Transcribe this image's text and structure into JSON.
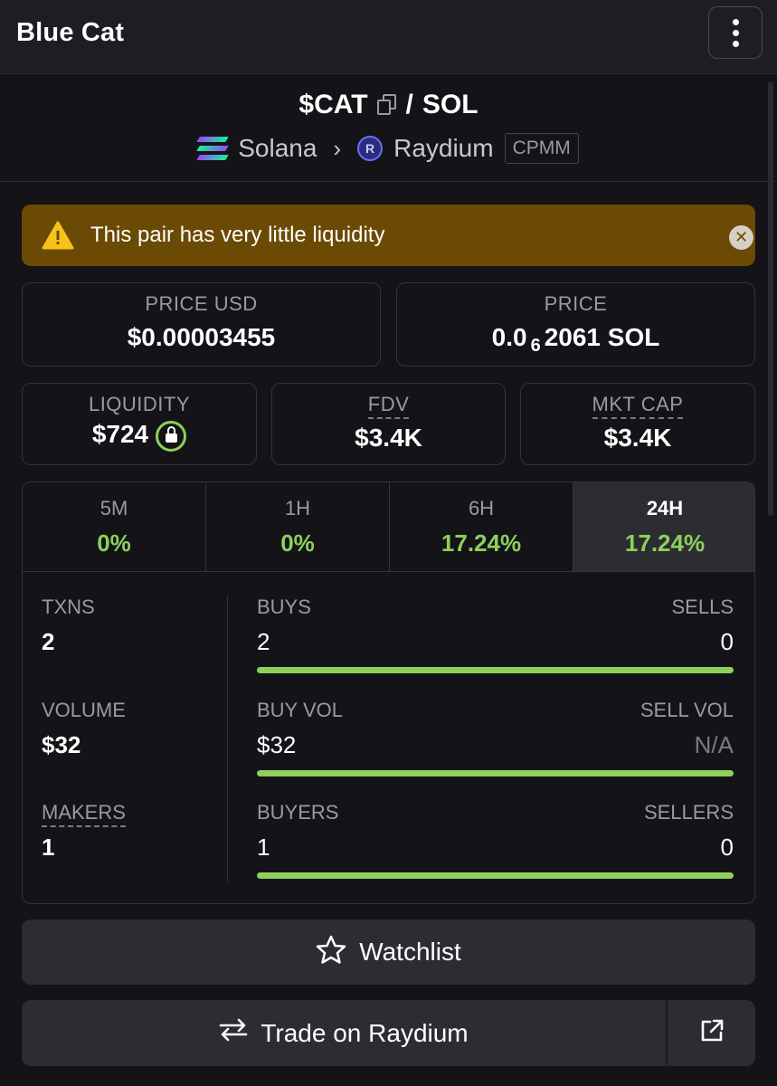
{
  "app": {
    "title": "Blue Cat"
  },
  "pair": {
    "base": "$CAT",
    "separator": "/",
    "quote": "SOL",
    "chain": "Solana",
    "dex": "Raydium",
    "dex_badge_letter": "R",
    "pool_type": "CPMM"
  },
  "alert": {
    "text": "This pair has very little liquidity",
    "color": "#6b4a05"
  },
  "price_usd": {
    "label": "PRICE USD",
    "value": "$0.00003455"
  },
  "price_native": {
    "label": "PRICE",
    "prefix": "0.0",
    "subscript": "6",
    "suffix": "2061 SOL"
  },
  "liquidity": {
    "label": "LIQUIDITY",
    "value": "$724"
  },
  "fdv": {
    "label": "FDV",
    "value": "$3.4K"
  },
  "mkt_cap": {
    "label": "MKT CAP",
    "value": "$3.4K"
  },
  "tabs": [
    {
      "label": "5M",
      "value": "0%"
    },
    {
      "label": "1H",
      "value": "0%"
    },
    {
      "label": "6H",
      "value": "17.24%"
    },
    {
      "label": "24H",
      "value": "17.24%",
      "active": true
    }
  ],
  "stats": {
    "txns": {
      "label": "TXNS",
      "value": "2"
    },
    "volume": {
      "label": "VOLUME",
      "value": "$32"
    },
    "makers": {
      "label": "MAKERS",
      "value": "1"
    },
    "buys": {
      "label": "BUYS",
      "value": "2"
    },
    "sells": {
      "label": "SELLS",
      "value": "0"
    },
    "buy_vol": {
      "label": "BUY VOL",
      "value": "$32"
    },
    "sell_vol": {
      "label": "SELL VOL",
      "value": "N/A"
    },
    "buyers": {
      "label": "BUYERS",
      "value": "1"
    },
    "sellers": {
      "label": "SELLERS",
      "value": "0"
    },
    "buy_share": 1.0
  },
  "actions": {
    "watchlist": "Watchlist",
    "trade": "Trade on Raydium"
  },
  "colors": {
    "positive": "#8ed05a",
    "background": "#131318",
    "surface": "#2c2d32"
  },
  "icons": [
    "kebab-menu-icon",
    "copy-icon",
    "solana-icon",
    "chevron-right-icon",
    "raydium-icon",
    "warning-icon",
    "close-icon",
    "lock-icon",
    "star-icon",
    "swap-arrows-icon",
    "external-link-icon"
  ]
}
